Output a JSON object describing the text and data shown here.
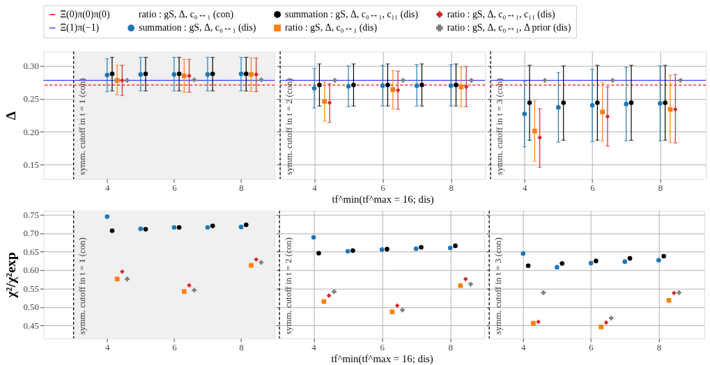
{
  "chart_data": [
    {
      "type": "scatter",
      "ylabel": "Δ",
      "legend": "top",
      "grid": true,
      "xlim": [
        2.1,
        9
      ],
      "xticks": [
        4,
        6,
        8
      ],
      "ylim": [
        0.128,
        0.322
      ],
      "yticks": [
        0.15,
        {
          "value": 0.2,
          "label": "0.20"
        },
        0.25,
        {
          "value": 0.3,
          "label": "0.30"
        }
      ],
      "annotations": [
        "symm. cutoff in t = 1 (con)"
      ],
      "bands": [
        {
          "axis": "x",
          "from": 3,
          "to": 9,
          "color": "#f0f0f0"
        }
      ],
      "ref_lines": [
        {
          "axis": "y",
          "value": 0.271,
          "label": "Ξ(0)π(0)π(0)",
          "color": "#ff0000",
          "line_style": "dashed"
        },
        {
          "axis": "y",
          "value": 0.278,
          "label": "Ξ(1)π(−1)",
          "color": "#4040ff",
          "line_style": "solid"
        },
        {
          "axis": "x",
          "value": 3,
          "color": "#000000",
          "line_style": "dashed"
        }
      ],
      "series": [
        {
          "name": "ratio : gS, Δ, c₀↔₁ (con)"
        },
        {
          "name": "summation : gS, Δ, c₀↔₁ (dis)",
          "color": "#1f77b4",
          "marker": "circle",
          "x": [
            4,
            5,
            6,
            7,
            8
          ],
          "values": [
            0.286,
            0.287,
            0.287,
            0.287,
            0.288
          ],
          "errors": [
            [
              0.261,
              0.311
            ],
            [
              0.262,
              0.313
            ],
            [
              0.262,
              0.313
            ],
            [
              0.262,
              0.313
            ],
            [
              0.262,
              0.313
            ]
          ]
        },
        {
          "name": "summation : gS, Δ, c₀↔₁, c₁₁ (dis)",
          "color": "#000000",
          "marker": "circle",
          "x": [
            4.15,
            5.15,
            6.15,
            7.15,
            8.15
          ],
          "values": [
            0.288,
            0.288,
            0.288,
            0.288,
            0.288
          ],
          "errors": [
            [
              0.262,
              0.313
            ],
            [
              0.262,
              0.313
            ],
            [
              0.262,
              0.313
            ],
            [
              0.262,
              0.313
            ],
            [
              0.262,
              0.313
            ]
          ]
        },
        {
          "name": "ratio : gS, Δ, c₀↔₁ (dis)",
          "color": "#ff7f0e",
          "marker": "square",
          "x": [
            4.3,
            6.3,
            8.3
          ],
          "values": [
            0.278,
            0.285,
            0.287
          ],
          "errors": [
            [
              0.256,
              0.301
            ],
            [
              0.26,
              0.31
            ],
            [
              0.261,
              0.312
            ]
          ]
        },
        {
          "name": "ratio : gS, Δ, c₀↔₁, c₁₁ (dis)",
          "color": "#d62728",
          "marker": "diamond",
          "x": [
            4.45,
            6.45,
            8.45
          ],
          "values": [
            0.278,
            0.285,
            0.287
          ],
          "errors": [
            [
              0.255,
              0.301
            ],
            [
              0.26,
              0.31
            ],
            [
              0.261,
              0.312
            ]
          ]
        },
        {
          "name": "ratio : gS, Δ, c₀↔₁, Δ prior (dis)",
          "color": "#7f7f7f",
          "marker": "cross",
          "x": [
            4.6,
            6.6,
            8.6
          ],
          "values": [
            0.278,
            0.279,
            0.279
          ]
        }
      ]
    },
    {
      "type": "scatter",
      "xlabel": "tf^min(tf^max = 16; dis)",
      "grid": true,
      "tick_labels": "x",
      "xlim": [
        3,
        9
      ],
      "xticks": [
        4,
        6,
        8
      ],
      "ylim": [
        0.128,
        0.322
      ],
      "yticks": [
        0.15,
        0.2,
        0.25,
        0.3
      ],
      "annotations": [
        "symm. cutoff in t = 2 (con)"
      ],
      "ref_lines": [
        {
          "axis": "y",
          "value": 0.271,
          "color": "#ff0000",
          "line_style": "dashed"
        },
        {
          "axis": "y",
          "value": 0.278,
          "color": "#4040ff",
          "line_style": "solid"
        },
        {
          "axis": "x",
          "value": 3,
          "color": "#000000",
          "line_style": "dashed"
        }
      ],
      "series": [
        {
          "color": "#1f77b4",
          "marker": "circle",
          "x": [
            4,
            5,
            6,
            7,
            8
          ],
          "values": [
            0.266,
            0.269,
            0.27,
            0.27,
            0.27
          ],
          "errors": [
            [
              0.236,
              0.296
            ],
            [
              0.238,
              0.3
            ],
            [
              0.239,
              0.301
            ],
            [
              0.239,
              0.302
            ],
            [
              0.239,
              0.302
            ]
          ]
        },
        {
          "color": "#000000",
          "marker": "circle",
          "x": [
            4.15,
            5.15,
            6.15,
            7.15,
            8.15
          ],
          "values": [
            0.271,
            0.271,
            0.271,
            0.271,
            0.271
          ],
          "errors": [
            [
              0.239,
              0.303
            ],
            [
              0.239,
              0.303
            ],
            [
              0.239,
              0.303
            ],
            [
              0.239,
              0.303
            ],
            [
              0.239,
              0.303
            ]
          ]
        },
        {
          "color": "#ff7f0e",
          "marker": "square",
          "x": [
            4.3,
            6.3,
            8.3
          ],
          "values": [
            0.246,
            0.264,
            0.268
          ],
          "errors": [
            [
              0.216,
              0.276
            ],
            [
              0.235,
              0.293
            ],
            [
              0.238,
              0.298
            ]
          ]
        },
        {
          "color": "#d62728",
          "marker": "diamond",
          "x": [
            4.45,
            6.45,
            8.45
          ],
          "values": [
            0.244,
            0.263,
            0.268
          ],
          "errors": [
            [
              0.214,
              0.273
            ],
            [
              0.234,
              0.292
            ],
            [
              0.238,
              0.299
            ]
          ]
        },
        {
          "color": "#7f7f7f",
          "marker": "cross",
          "x": [
            4.6,
            6.6,
            8.6
          ],
          "values": [
            0.278,
            0.278,
            0.278
          ]
        }
      ]
    },
    {
      "type": "scatter",
      "grid": true,
      "tick_labels": "x",
      "xlim": [
        3,
        9.35
      ],
      "xticks": [
        4,
        6,
        8
      ],
      "ylim": [
        0.128,
        0.322
      ],
      "yticks": [
        0.15,
        0.2,
        0.25,
        0.3
      ],
      "annotations": [
        "symm. cutoff in t = 3 (con)"
      ],
      "ref_lines": [
        {
          "axis": "y",
          "value": 0.271,
          "color": "#ff0000",
          "line_style": "dashed"
        },
        {
          "axis": "y",
          "value": 0.278,
          "color": "#4040ff",
          "line_style": "solid"
        },
        {
          "axis": "x",
          "value": 3,
          "color": "#000000",
          "line_style": "dashed"
        }
      ],
      "series": [
        {
          "color": "#1f77b4",
          "marker": "circle",
          "x": [
            4,
            5,
            6,
            7,
            8
          ],
          "values": [
            0.227,
            0.237,
            0.24,
            0.242,
            0.243
          ],
          "errors": [
            [
              0.177,
              0.277
            ],
            [
              0.184,
              0.29
            ],
            [
              0.185,
              0.295
            ],
            [
              0.186,
              0.298
            ],
            [
              0.186,
              0.3
            ]
          ]
        },
        {
          "color": "#000000",
          "marker": "circle",
          "x": [
            4.15,
            5.15,
            6.15,
            7.15,
            8.15
          ],
          "values": [
            0.244,
            0.244,
            0.244,
            0.244,
            0.244
          ],
          "errors": [
            [
              0.187,
              0.301
            ],
            [
              0.187,
              0.3
            ],
            [
              0.187,
              0.301
            ],
            [
              0.187,
              0.301
            ],
            [
              0.187,
              0.301
            ]
          ]
        },
        {
          "color": "#ff7f0e",
          "marker": "square",
          "x": [
            4.3,
            6.3,
            8.3
          ],
          "values": [
            0.201,
            0.23,
            0.234
          ],
          "errors": [
            [
              0.155,
              0.247
            ],
            [
              0.186,
              0.275
            ],
            [
              0.184,
              0.286
            ]
          ]
        },
        {
          "color": "#d62728",
          "marker": "diamond",
          "x": [
            4.45,
            6.45,
            8.45
          ],
          "values": [
            0.191,
            0.223,
            0.234
          ],
          "errors": [
            [
              0.146,
              0.235
            ],
            [
              0.178,
              0.268
            ],
            [
              0.183,
              0.287
            ]
          ]
        },
        {
          "color": "#7f7f7f",
          "marker": "cross",
          "x": [
            4.6,
            6.6,
            8.6
          ],
          "values": [
            0.278,
            0.278,
            0.278
          ]
        }
      ]
    },
    {
      "type": "scatter",
      "ylabel": "χ²/χ²exp",
      "grid": true,
      "xlim": [
        2.1,
        9
      ],
      "xticks": [
        4,
        6,
        8
      ],
      "ylim": [
        0.415,
        0.761
      ],
      "yticks": [
        0.45,
        {
          "value": 0.5,
          "label": "0.50"
        },
        0.55,
        {
          "value": 0.6,
          "label": "0.60"
        },
        0.65,
        {
          "value": 0.7,
          "label": "0.70"
        },
        0.75
      ],
      "annotations": [
        "symm. cutoff in t = 1 (con)"
      ],
      "bands": [
        {
          "axis": "x",
          "from": 3,
          "to": 9,
          "color": "#f0f0f0"
        }
      ],
      "ref_lines": [
        {
          "axis": "x",
          "value": 3,
          "color": "#000000",
          "line_style": "dashed"
        }
      ],
      "series": [
        {
          "color": "#1f77b4",
          "marker": "circle",
          "x": [
            4,
            5,
            6,
            7,
            8
          ],
          "values": [
            0.745,
            0.712,
            0.716,
            0.716,
            0.717
          ]
        },
        {
          "color": "#000000",
          "marker": "circle",
          "x": [
            4.15,
            5.15,
            6.15,
            7.15,
            8.15
          ],
          "values": [
            0.707,
            0.711,
            0.716,
            0.72,
            0.723
          ]
        },
        {
          "color": "#ff7f0e",
          "marker": "square",
          "x": [
            4.3,
            6.3,
            8.3
          ],
          "values": [
            0.576,
            0.542,
            0.613
          ]
        },
        {
          "color": "#d62728",
          "marker": "diamond",
          "x": [
            4.45,
            6.45,
            8.45
          ],
          "values": [
            0.596,
            0.559,
            0.629
          ]
        },
        {
          "color": "#7f7f7f",
          "marker": "cross",
          "x": [
            4.6,
            6.6,
            8.6
          ],
          "values": [
            0.576,
            0.546,
            0.621
          ]
        }
      ]
    },
    {
      "type": "scatter",
      "xlabel": "tf^min(tf^max = 16; dis)",
      "grid": true,
      "tick_labels": "x",
      "xlim": [
        3,
        9
      ],
      "xticks": [
        4,
        6,
        8
      ],
      "ylim": [
        0.415,
        0.761
      ],
      "yticks": [
        0.45,
        0.5,
        0.55,
        0.6,
        0.65,
        0.7,
        0.75
      ],
      "annotations": [
        "symm. cutoff in t = 2 (con)"
      ],
      "ref_lines": [
        {
          "axis": "x",
          "value": 3,
          "color": "#000000",
          "line_style": "dashed"
        }
      ],
      "series": [
        {
          "color": "#1f77b4",
          "marker": "circle",
          "x": [
            4,
            5,
            6,
            7,
            8
          ],
          "values": [
            0.689,
            0.651,
            0.656,
            0.658,
            0.66
          ]
        },
        {
          "color": "#000000",
          "marker": "circle",
          "x": [
            4.15,
            5.15,
            6.15,
            7.15,
            8.15
          ],
          "values": [
            0.646,
            0.653,
            0.657,
            0.662,
            0.666
          ]
        },
        {
          "color": "#ff7f0e",
          "marker": "square",
          "x": [
            4.3,
            6.3,
            8.3
          ],
          "values": [
            0.515,
            0.487,
            0.558
          ]
        },
        {
          "color": "#d62728",
          "marker": "diamond",
          "x": [
            4.45,
            6.45,
            8.45
          ],
          "values": [
            0.531,
            0.504,
            0.576
          ]
        },
        {
          "color": "#7f7f7f",
          "marker": "cross",
          "x": [
            4.6,
            6.6,
            8.6
          ],
          "values": [
            0.542,
            0.492,
            0.562
          ]
        }
      ]
    },
    {
      "type": "scatter",
      "grid": true,
      "tick_labels": "x",
      "xlim": [
        3,
        9.35
      ],
      "xticks": [
        4,
        6,
        8
      ],
      "ylim": [
        0.415,
        0.761
      ],
      "yticks": [
        0.45,
        0.5,
        0.55,
        0.6,
        0.65,
        0.7,
        0.75
      ],
      "annotations": [
        "symm. cutoff in t = 3 (con)"
      ],
      "ref_lines": [
        {
          "axis": "x",
          "value": 3,
          "color": "#000000",
          "line_style": "dashed"
        }
      ],
      "series": [
        {
          "color": "#1f77b4",
          "marker": "circle",
          "x": [
            4,
            5,
            6,
            7,
            8
          ],
          "values": [
            0.645,
            0.608,
            0.619,
            0.623,
            0.627
          ]
        },
        {
          "color": "#000000",
          "marker": "circle",
          "x": [
            4.15,
            5.15,
            6.15,
            7.15,
            8.15
          ],
          "values": [
            0.612,
            0.618,
            0.625,
            0.632,
            0.638
          ]
        },
        {
          "color": "#ff7f0e",
          "marker": "square",
          "x": [
            4.3,
            6.3,
            8.3
          ],
          "values": [
            0.456,
            0.446,
            0.518
          ]
        },
        {
          "color": "#d62728",
          "marker": "diamond",
          "x": [
            4.45,
            6.45,
            8.45
          ],
          "values": [
            0.46,
            0.458,
            0.538
          ]
        },
        {
          "color": "#7f7f7f",
          "marker": "cross",
          "x": [
            4.6,
            6.6,
            8.6
          ],
          "values": [
            0.539,
            0.47,
            0.539
          ]
        }
      ]
    }
  ]
}
